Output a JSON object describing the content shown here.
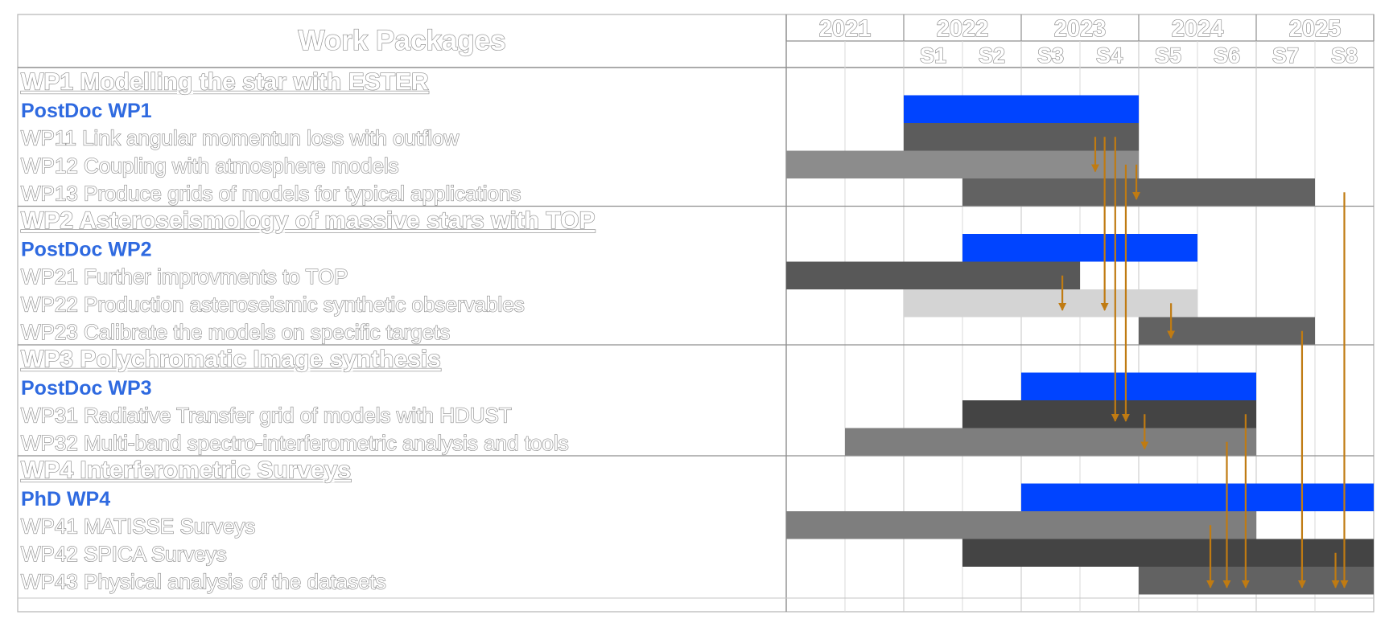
{
  "header": {
    "title": "Work Packages",
    "years": [
      "2021",
      "2022",
      "2023",
      "2024",
      "2025"
    ],
    "semesters": [
      "",
      "",
      "S1",
      "S2",
      "S3",
      "S4",
      "S5",
      "S6",
      "S7",
      "S8"
    ]
  },
  "rows": [
    {
      "label": "WP1 Modelling the star with ESTER",
      "kind": "wp"
    },
    {
      "label": "PostDoc WP1",
      "kind": "postdoc",
      "bar": [
        2,
        6
      ],
      "color": "#0044ff"
    },
    {
      "label": "WP11  Link angular momentun loss with outflow",
      "kind": "task",
      "bar": [
        2,
        6
      ],
      "color": "#5c5c5c"
    },
    {
      "label": "WP12  Coupling with atmosphere models",
      "kind": "task",
      "bar": [
        0,
        6
      ],
      "color": "#8c8c8c"
    },
    {
      "label": "WP13  Produce grids of models for typical applications",
      "kind": "task",
      "bar": [
        3,
        9
      ],
      "color": "#626262"
    },
    {
      "label": "WP2 Asteroseismology of massive stars with TOP",
      "kind": "wp"
    },
    {
      "label": "PostDoc WP2",
      "kind": "postdoc",
      "bar": [
        3,
        7
      ],
      "color": "#0044ff"
    },
    {
      "label": "WP21  Further improvments to TOP",
      "kind": "task",
      "bar": [
        0,
        5
      ],
      "color": "#585858"
    },
    {
      "label": "WP22  Production asteroseismic synthetic observables",
      "kind": "task",
      "bar": [
        2,
        7
      ],
      "color": "#d4d4d4"
    },
    {
      "label": "WP23  Calibrate the models on specific targets",
      "kind": "task",
      "bar": [
        6,
        9
      ],
      "color": "#626262"
    },
    {
      "label": "WP3 Polychromatic Image synthesis",
      "kind": "wp"
    },
    {
      "label": "PostDoc WP3",
      "kind": "postdoc",
      "bar": [
        4,
        8
      ],
      "color": "#0044ff"
    },
    {
      "label": "WP31  Radiative Transfer grid of models with HDUST",
      "kind": "task",
      "bar": [
        3,
        8
      ],
      "color": "#444444"
    },
    {
      "label": "WP32  Multi-band spectro-interferometric analysis and tools",
      "kind": "task",
      "bar": [
        1,
        8
      ],
      "color": "#7e7e7e"
    },
    {
      "label": "WP4 Interferometric Surveys",
      "kind": "wp"
    },
    {
      "label": "PhD WP4",
      "kind": "postdoc",
      "bar": [
        4,
        10
      ],
      "color": "#0044ff"
    },
    {
      "label": "WP41  MATISSE Surveys",
      "kind": "task",
      "bar": [
        0,
        8
      ],
      "color": "#7e7e7e"
    },
    {
      "label": "WP42  SPICA Surveys",
      "kind": "task",
      "bar": [
        3,
        10
      ],
      "color": "#444444"
    },
    {
      "label": "WP43  Physical analysis of the datasets",
      "kind": "task",
      "bar": [
        6,
        10
      ],
      "color": "#626262"
    }
  ],
  "dependency_arrow_color": "#c07b12",
  "dependencies": [
    {
      "col": 5.26,
      "from": 2,
      "to": 3
    },
    {
      "col": 5.42,
      "from": 2,
      "to": 8
    },
    {
      "col": 5.6,
      "from": 2,
      "to": 12
    },
    {
      "col": 5.78,
      "from": 3,
      "to": 12
    },
    {
      "col": 5.96,
      "from": 3,
      "to": 4
    },
    {
      "col": 4.7,
      "from": 7,
      "to": 8
    },
    {
      "col": 6.55,
      "from": 8,
      "to": 9
    },
    {
      "col": 6.1,
      "from": 12,
      "to": 13
    },
    {
      "col": 9.5,
      "from": 4,
      "to": 18
    },
    {
      "col": 8.78,
      "from": 9,
      "to": 18
    },
    {
      "col": 7.82,
      "from": 12,
      "to": 18
    },
    {
      "col": 7.5,
      "from": 13,
      "to": 18
    },
    {
      "col": 7.22,
      "from": 16,
      "to": 18
    },
    {
      "col": 9.35,
      "from": 17,
      "to": 18
    }
  ]
}
